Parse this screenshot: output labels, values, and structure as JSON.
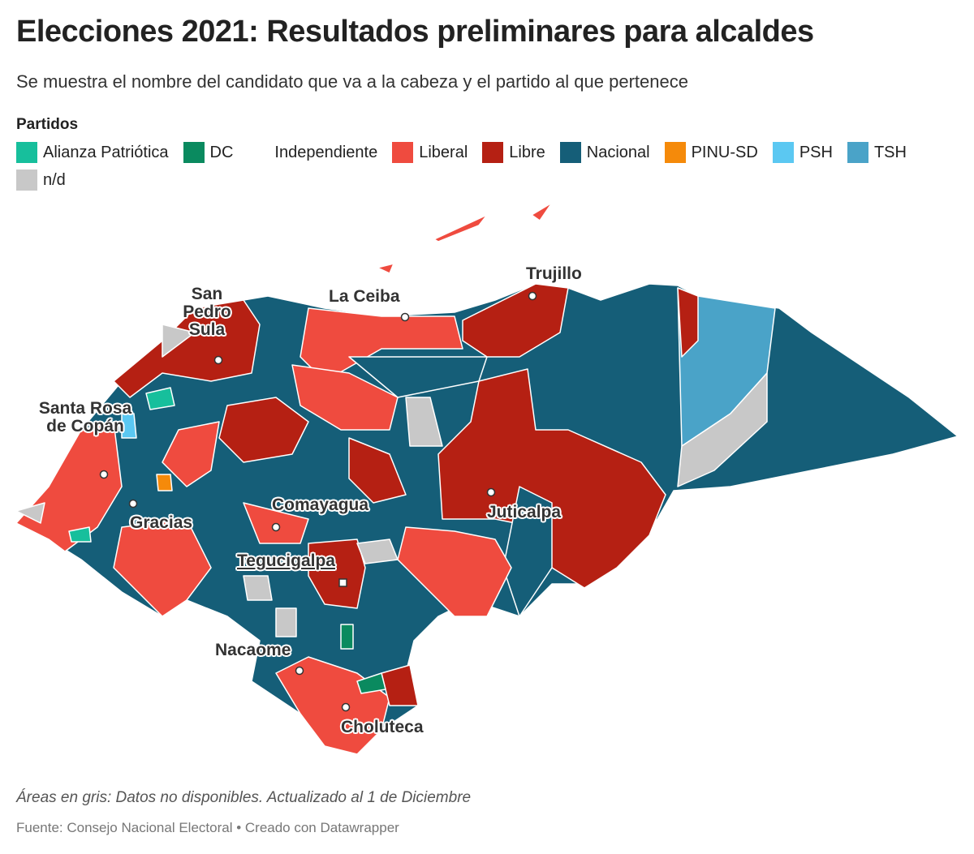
{
  "header": {
    "title": "Elecciones 2021: Resultados preliminares para alcaldes",
    "subtitle": "Se muestra el nombre del candidato que va a la cabeza y el partido al que pertenece"
  },
  "legend": {
    "title": "Partidos",
    "items": [
      {
        "label": "Alianza Patriótica",
        "color": "#17bf9c"
      },
      {
        "label": "DC",
        "color": "#0a8a5f"
      },
      {
        "label": "Independiente",
        "color": "#ffffff"
      },
      {
        "label": "Liberal",
        "color": "#ef4b3f"
      },
      {
        "label": "Libre",
        "color": "#b52013"
      },
      {
        "label": "Nacional",
        "color": "#155e78"
      },
      {
        "label": "PINU-SD",
        "color": "#f58a0a"
      },
      {
        "label": "PSH",
        "color": "#5bc8f2"
      },
      {
        "label": "TSH",
        "color": "#4aa3c8"
      },
      {
        "label": "n/d",
        "color": "#c8c8c8"
      }
    ]
  },
  "cities": [
    {
      "label": "San Pedro Sula"
    },
    {
      "label": "La Ceiba"
    },
    {
      "label": "Trujillo"
    },
    {
      "label": "Santa Rosa de Copán"
    },
    {
      "label": "Gracias"
    },
    {
      "label": "Comayagua"
    },
    {
      "label": "Juticalpa"
    },
    {
      "label": "Tegucigalpa"
    },
    {
      "label": "Nacaome"
    },
    {
      "label": "Choluteca"
    }
  ],
  "footer": {
    "note": "Áreas en gris: Datos no disponibles. Actualizado al 1 de Diciembre",
    "source": "Fuente: Consejo Nacional Electoral • Creado con Datawrapper"
  }
}
